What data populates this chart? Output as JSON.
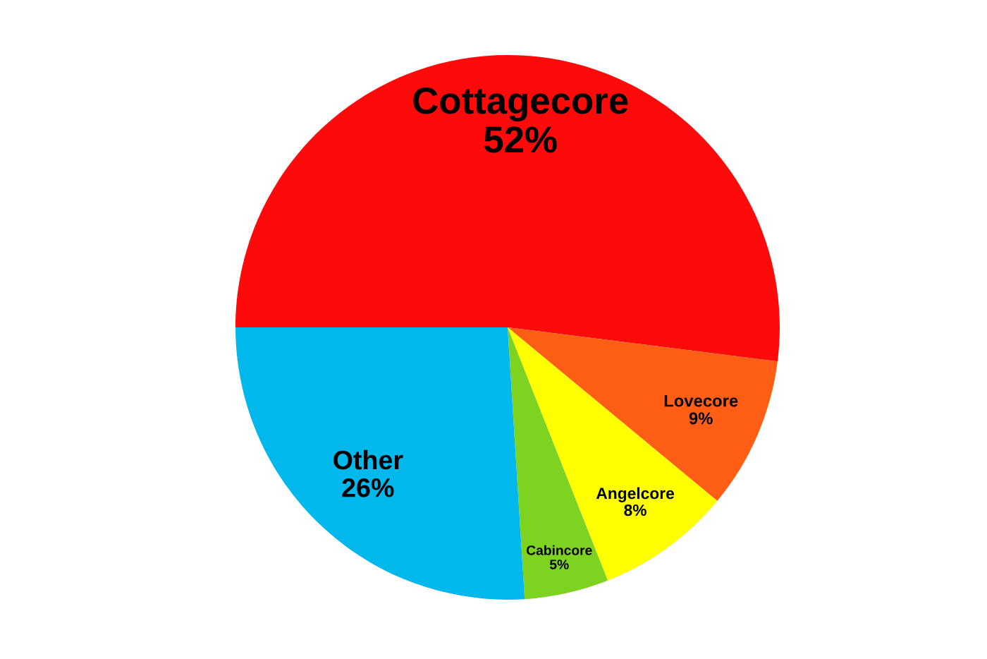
{
  "chart_data": {
    "type": "pie",
    "categories": [
      "Cottagecore",
      "Lovecore",
      "Angelcore",
      "Cabincore",
      "Other"
    ],
    "values": [
      52,
      9,
      8,
      5,
      26
    ],
    "value_labels": [
      "52%",
      "9%",
      "8%",
      "5%",
      "26%"
    ],
    "colors": [
      "#ff0a0a",
      "#ff5e14",
      "#ffff00",
      "#7ed321",
      "#00b8ec"
    ]
  }
}
